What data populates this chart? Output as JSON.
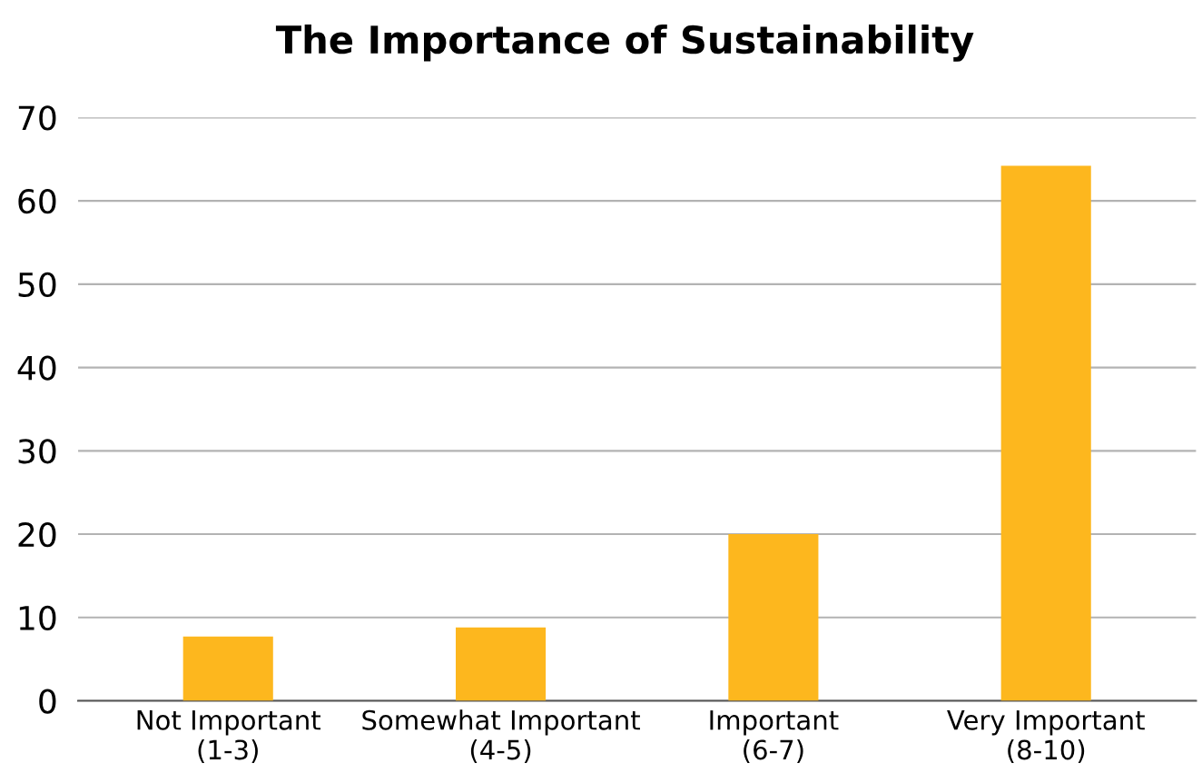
{
  "chart_data": {
    "type": "bar",
    "title": "The Importance of Sustainability",
    "categories": [
      "Not Important\n(1-3)",
      "Somewhat Important\n(4-5)",
      "Important\n(6-7)",
      "Very Important\n(8-10)"
    ],
    "values": [
      7.7,
      8.8,
      20,
      64.2
    ],
    "color": "#fdb71e",
    "ylim": [
      0,
      70
    ],
    "yticks": [
      0,
      10,
      20,
      30,
      40,
      50,
      60,
      70
    ],
    "grid": "y"
  }
}
